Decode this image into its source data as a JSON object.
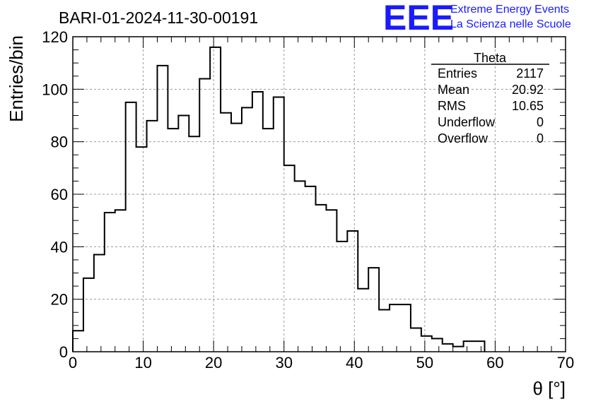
{
  "chart_data": {
    "type": "bar",
    "title": "BARI-01-2024-11-30-00191",
    "xlabel": "θ [°]",
    "ylabel": "Entries/bin",
    "xlim": [
      0,
      70
    ],
    "ylim": [
      0,
      120
    ],
    "xticks": [
      "0",
      "10",
      "20",
      "30",
      "40",
      "50",
      "60",
      "70"
    ],
    "yticks": [
      "0",
      "20",
      "40",
      "60",
      "80",
      "100",
      "120"
    ],
    "grid": true,
    "bin_width": 1.5,
    "bin_start": 0,
    "values": [
      8,
      28,
      37,
      53,
      54,
      95,
      78,
      88,
      109,
      85,
      90,
      82,
      104,
      116,
      91,
      87,
      93,
      99,
      85,
      97,
      71,
      65,
      63,
      56,
      54,
      42,
      46,
      24,
      32,
      16,
      18,
      18,
      9,
      6,
      5,
      3,
      2,
      4,
      4
    ]
  },
  "stats": {
    "title": "Theta",
    "rows": [
      {
        "label": "Entries",
        "value": "2117"
      },
      {
        "label": "Mean",
        "value": "20.92"
      },
      {
        "label": "RMS",
        "value": "10.65"
      },
      {
        "label": "Underflow",
        "value": "0"
      },
      {
        "label": "Overflow",
        "value": "0"
      }
    ]
  },
  "logo": {
    "mark": "EEE",
    "line1": "Extreme Energy Events",
    "line2": "La Scienza nelle Scuole",
    "color": "#1a1aff"
  }
}
